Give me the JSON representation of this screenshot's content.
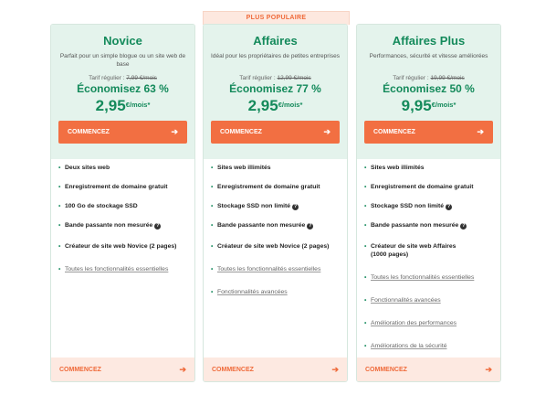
{
  "popular_label": "PLUS POPULAIRE",
  "accent_color": "#f26f42",
  "brand_green": "#148a5b",
  "plans": [
    {
      "name": "Novice",
      "description": "Parfait pour un simple blogue ou un site web de base",
      "regular_label": "Tarif régulier : ",
      "regular_price": "7,99 €/mois",
      "savings": "Économisez 63 %",
      "price": "2,95",
      "price_unit": "€/mois*",
      "cta": "COMMENCEZ",
      "features": [
        {
          "text": "Deux sites web",
          "style": "bold"
        },
        {
          "text": "Enregistrement de domaine gratuit",
          "style": "bold"
        },
        {
          "text": "100 Go de stockage SSD",
          "style": "bold"
        },
        {
          "text": "Bande passante non mesurée",
          "style": "bold",
          "help": "?"
        },
        {
          "text": "Créateur de site web Novice (2 pages)",
          "style": "bold"
        },
        {
          "text": "Toutes les fonctionnalités essentielles",
          "style": "link"
        }
      ],
      "bottom_cta": "COMMENCEZ"
    },
    {
      "name": "Affaires",
      "description": "Idéal pour les propriétaires de petites entreprises",
      "regular_label": "Tarif régulier : ",
      "regular_price": "12,99 €/mois",
      "savings": "Économisez 77 %",
      "price": "2,95",
      "price_unit": "€/mois*",
      "cta": "COMMENCEZ",
      "features": [
        {
          "text": "Sites web illimités",
          "style": "bold"
        },
        {
          "text": "Enregistrement de domaine gratuit",
          "style": "bold"
        },
        {
          "text": "Stockage SSD non limité",
          "style": "bold",
          "help": "?"
        },
        {
          "text": "Bande passante non mesurée",
          "style": "bold",
          "help": "?"
        },
        {
          "text": "Créateur de site web Novice (2 pages)",
          "style": "bold"
        },
        {
          "text": "Toutes les fonctionnalités essentielles",
          "style": "link"
        },
        {
          "text": "Fonctionnalités avancées",
          "style": "link"
        }
      ],
      "bottom_cta": "COMMENCEZ"
    },
    {
      "name": "Affaires Plus",
      "description": "Performances, sécurité et vitesse améliorées",
      "regular_label": "Tarif régulier : ",
      "regular_price": "19,99 €/mois",
      "savings": "Économisez 50 %",
      "price": "9,95",
      "price_unit": "€/mois*",
      "cta": "COMMENCEZ",
      "features": [
        {
          "text": "Sites web illimités",
          "style": "bold"
        },
        {
          "text": "Enregistrement de domaine gratuit",
          "style": "bold"
        },
        {
          "text": "Stockage SSD non limité",
          "style": "bold",
          "help": "?"
        },
        {
          "text": "Bande passante non mesurée",
          "style": "bold",
          "help": "?"
        },
        {
          "text": "Créateur de site web Affaires (1000 pages)",
          "style": "bold"
        },
        {
          "text": "Toutes les fonctionnalités essentielles",
          "style": "link"
        },
        {
          "text": "Fonctionnalités avancées",
          "style": "link"
        },
        {
          "text": "Amélioration des performances",
          "style": "link"
        },
        {
          "text": "Améliorations de la sécurité",
          "style": "link"
        }
      ],
      "bottom_cta": "COMMENCEZ"
    }
  ]
}
